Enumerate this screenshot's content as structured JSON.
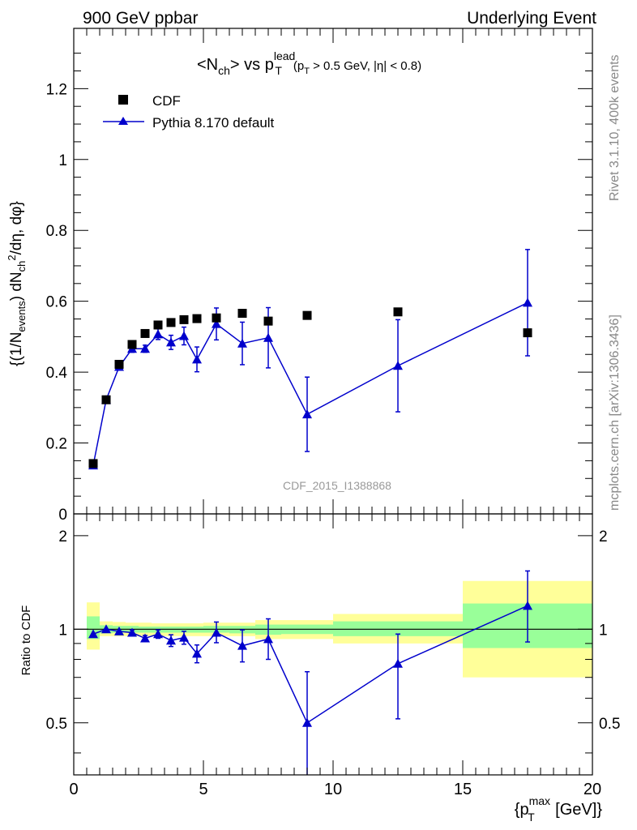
{
  "header": {
    "left": "900 GeV ppbar",
    "right": "Underlying Event"
  },
  "side_text": {
    "top": "Rivet 3.1.10,  400k events",
    "bottom": "mcplots.cern.ch [arXiv:1306.3436]"
  },
  "analysis_label": "CDF_2015_I1388868",
  "chart_data": [
    {
      "type": "scatter",
      "panel": "main",
      "title": "<N_ch> vs p_T^lead (p_T > 0.5 GeV, |η| < 0.8)",
      "ylabel": "{(1/N_events) dN_ch^2/dη, dφ}",
      "xlim": [
        0,
        20
      ],
      "ylim": [
        0,
        1.37
      ],
      "yticks": [
        0,
        0.2,
        0.4,
        0.6,
        0.8,
        1,
        1.2
      ],
      "ytick_labels": [
        "0",
        "0.2",
        "0.4",
        "0.6",
        "0.8",
        "1",
        "1.2"
      ],
      "legend_position": "top-left",
      "series": [
        {
          "name": "CDF",
          "color": "#000000",
          "marker": "square",
          "x": [
            0.75,
            1.25,
            1.75,
            2.25,
            2.75,
            3.25,
            3.75,
            4.25,
            4.75,
            5.5,
            6.5,
            7.5,
            9.0,
            12.5,
            17.5
          ],
          "y": [
            0.142,
            0.322,
            0.422,
            0.478,
            0.509,
            0.533,
            0.54,
            0.548,
            0.551,
            0.553,
            0.566,
            0.544,
            0.56,
            0.57,
            0.511
          ]
        },
        {
          "name": "Pythia 8.170 default",
          "color": "#0000cc",
          "marker": "triangle",
          "x": [
            0.75,
            1.25,
            1.75,
            2.25,
            2.75,
            3.25,
            3.75,
            4.25,
            4.75,
            5.5,
            6.5,
            7.5,
            9.0,
            12.5,
            17.5
          ],
          "y": [
            0.137,
            0.322,
            0.415,
            0.466,
            0.466,
            0.507,
            0.484,
            0.502,
            0.436,
            0.536,
            0.481,
            0.497,
            0.281,
            0.418,
            0.596
          ],
          "yerr": [
            0.004,
            0.005,
            0.008,
            0.01,
            0.01,
            0.015,
            0.02,
            0.025,
            0.035,
            0.045,
            0.06,
            0.085,
            0.105,
            0.13,
            0.15
          ]
        }
      ]
    },
    {
      "type": "line",
      "panel": "ratio",
      "ylabel": "Ratio to CDF",
      "xlabel": "{p_T^max [GeV]}",
      "xlim": [
        0,
        20
      ],
      "ylim": [
        0.34,
        2.35
      ],
      "log_y": true,
      "xticks": [
        0,
        5,
        10,
        15,
        20
      ],
      "xtick_labels": [
        "0",
        "5",
        "10",
        "15",
        "20"
      ],
      "yticks": [
        0.5,
        1,
        2
      ],
      "ytick_labels": [
        "0.5",
        "1",
        "2"
      ],
      "reference_line": 1,
      "uncertainty_bands": [
        {
          "x0": 0.5,
          "x1": 1.0,
          "green": [
            0.93,
            1.1
          ],
          "yellow": [
            0.86,
            1.22
          ]
        },
        {
          "x0": 1.0,
          "x1": 1.5,
          "green": [
            0.97,
            1.03
          ],
          "yellow": [
            0.95,
            1.06
          ]
        },
        {
          "x0": 1.5,
          "x1": 2.0,
          "green": [
            0.975,
            1.025
          ],
          "yellow": [
            0.95,
            1.055
          ]
        },
        {
          "x0": 2.0,
          "x1": 2.5,
          "green": [
            0.975,
            1.025
          ],
          "yellow": [
            0.95,
            1.05
          ]
        },
        {
          "x0": 2.5,
          "x1": 3.0,
          "green": [
            0.975,
            1.02
          ],
          "yellow": [
            0.95,
            1.05
          ]
        },
        {
          "x0": 3.0,
          "x1": 3.5,
          "green": [
            0.975,
            1.02
          ],
          "yellow": [
            0.95,
            1.045
          ]
        },
        {
          "x0": 3.5,
          "x1": 4.0,
          "green": [
            0.975,
            1.02
          ],
          "yellow": [
            0.95,
            1.045
          ]
        },
        {
          "x0": 4.0,
          "x1": 4.5,
          "green": [
            0.975,
            1.02
          ],
          "yellow": [
            0.95,
            1.045
          ]
        },
        {
          "x0": 4.5,
          "x1": 5.0,
          "green": [
            0.975,
            1.02
          ],
          "yellow": [
            0.95,
            1.045
          ]
        },
        {
          "x0": 5.0,
          "x1": 6.0,
          "green": [
            0.975,
            1.025
          ],
          "yellow": [
            0.95,
            1.05
          ]
        },
        {
          "x0": 6.0,
          "x1": 7.0,
          "green": [
            0.97,
            1.025
          ],
          "yellow": [
            0.95,
            1.05
          ]
        },
        {
          "x0": 7.0,
          "x1": 8.0,
          "green": [
            0.96,
            1.035
          ],
          "yellow": [
            0.93,
            1.07
          ]
        },
        {
          "x0": 8.0,
          "x1": 10.0,
          "green": [
            0.965,
            1.035
          ],
          "yellow": [
            0.93,
            1.07
          ]
        },
        {
          "x0": 10.0,
          "x1": 15.0,
          "green": [
            0.95,
            1.06
          ],
          "yellow": [
            0.9,
            1.12
          ]
        },
        {
          "x0": 15.0,
          "x1": 20.0,
          "green": [
            0.87,
            1.21
          ],
          "yellow": [
            0.7,
            1.43
          ]
        }
      ],
      "series": [
        {
          "name": "Pythia 8.170 default",
          "color": "#0000cc",
          "marker": "triangle",
          "x": [
            0.75,
            1.25,
            1.75,
            2.25,
            2.75,
            3.25,
            3.75,
            4.25,
            4.75,
            5.5,
            6.5,
            7.5,
            9.0,
            12.5,
            17.5
          ],
          "y": [
            0.965,
            1.0,
            0.985,
            0.975,
            0.935,
            0.965,
            0.92,
            0.94,
            0.835,
            0.975,
            0.885,
            0.93,
            0.5,
            0.775,
            1.19
          ],
          "yerr_low": [
            0.01,
            0.01,
            0.015,
            0.02,
            0.02,
            0.03,
            0.04,
            0.045,
            0.055,
            0.07,
            0.1,
            0.13,
            0.17,
            0.26,
            0.28
          ],
          "yerr_high": [
            0.01,
            0.01,
            0.015,
            0.02,
            0.02,
            0.03,
            0.04,
            0.045,
            0.055,
            0.08,
            0.11,
            0.15,
            0.23,
            0.19,
            0.35
          ]
        }
      ]
    }
  ]
}
